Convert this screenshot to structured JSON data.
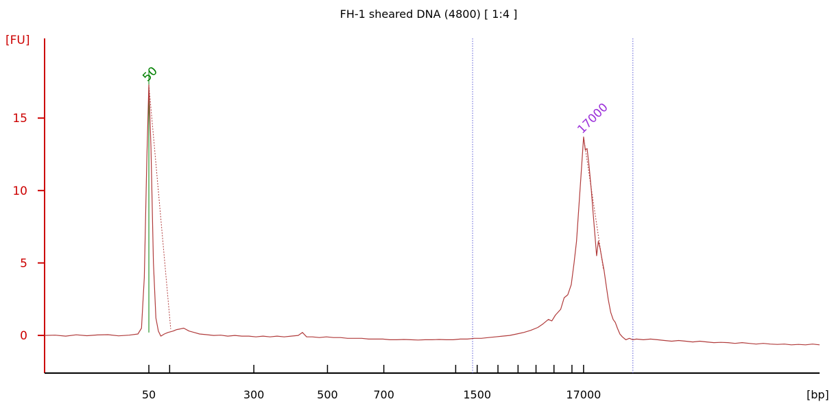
{
  "chart_data": {
    "type": "line",
    "title": "FH-1 sheared DNA (4800)  [ 1:4 ]",
    "ylabel": "[FU]",
    "xlabel": "[bp]",
    "ylim": [
      -2.6,
      20.5
    ],
    "y_ticks": [
      0,
      5,
      10,
      15
    ],
    "x_axis_scale": "nonlinear (electropherogram migration)",
    "x_tick_labels": [
      {
        "bp": "50",
        "labeled": true
      },
      {
        "bp": "",
        "labeled": false
      },
      {
        "bp": "300",
        "labeled": true
      },
      {
        "bp": "500",
        "labeled": true
      },
      {
        "bp": "700",
        "labeled": true
      },
      {
        "bp": "",
        "labeled": false
      },
      {
        "bp": "1500",
        "labeled": true
      },
      {
        "bp": "",
        "labeled": false
      },
      {
        "bp": "",
        "labeled": false
      },
      {
        "bp": "",
        "labeled": false
      },
      {
        "bp": "",
        "labeled": false
      },
      {
        "bp": "",
        "labeled": false
      },
      {
        "bp": "17000",
        "labeled": true
      }
    ],
    "colors": {
      "trace": "#b03a3a",
      "y_axis": "#cc0000",
      "region_lines": "#5a5ad6",
      "marker_peak_label": "#008000",
      "sample_peak_label": "#9b30d9"
    },
    "peak_labels": [
      {
        "text": "50",
        "y": 17.3,
        "color": "#008000"
      },
      {
        "text": "17000",
        "y": 13.7,
        "color": "#9b30d9"
      }
    ],
    "series": [
      {
        "values_note": "fluorescence trace sampled along migration axis",
        "points": [
          [
            0,
            0.0
          ],
          [
            3,
            0.02
          ],
          [
            6,
            -0.05
          ],
          [
            9,
            0.04
          ],
          [
            12,
            -0.02
          ],
          [
            15,
            0.03
          ],
          [
            18,
            0.05
          ],
          [
            21,
            -0.03
          ],
          [
            24,
            0.02
          ],
          [
            26.5,
            0.1
          ],
          [
            27.5,
            0.5
          ],
          [
            28.3,
            4.0
          ],
          [
            29.0,
            12.0
          ],
          [
            29.6,
            17.3
          ],
          [
            30.2,
            13.0
          ],
          [
            30.9,
            5.0
          ],
          [
            31.6,
            1.2
          ],
          [
            32.3,
            0.3
          ],
          [
            33.0,
            -0.05
          ],
          [
            34,
            0.1
          ],
          [
            35,
            0.2
          ],
          [
            36.5,
            0.3
          ],
          [
            37.5,
            0.4
          ],
          [
            38.5,
            0.45
          ],
          [
            39.5,
            0.5
          ],
          [
            41,
            0.3
          ],
          [
            42.5,
            0.2
          ],
          [
            44,
            0.1
          ],
          [
            46,
            0.05
          ],
          [
            48,
            0.0
          ],
          [
            50,
            0.02
          ],
          [
            52,
            -0.05
          ],
          [
            54,
            0.0
          ],
          [
            56,
            -0.05
          ],
          [
            58,
            -0.05
          ],
          [
            60,
            -0.1
          ],
          [
            62,
            -0.05
          ],
          [
            64,
            -0.1
          ],
          [
            66,
            -0.05
          ],
          [
            68,
            -0.1
          ],
          [
            70,
            -0.05
          ],
          [
            72,
            0.0
          ],
          [
            73.2,
            0.2
          ],
          [
            74.4,
            -0.1
          ],
          [
            76,
            -0.1
          ],
          [
            78,
            -0.15
          ],
          [
            80,
            -0.1
          ],
          [
            82,
            -0.15
          ],
          [
            84,
            -0.15
          ],
          [
            86,
            -0.2
          ],
          [
            88,
            -0.2
          ],
          [
            90,
            -0.2
          ],
          [
            92,
            -0.25
          ],
          [
            94,
            -0.25
          ],
          [
            96,
            -0.25
          ],
          [
            98,
            -0.3
          ],
          [
            100,
            -0.3
          ],
          [
            102,
            -0.28
          ],
          [
            104,
            -0.3
          ],
          [
            106,
            -0.32
          ],
          [
            108,
            -0.3
          ],
          [
            110,
            -0.3
          ],
          [
            112,
            -0.28
          ],
          [
            114,
            -0.3
          ],
          [
            116,
            -0.3
          ],
          [
            118,
            -0.25
          ],
          [
            120,
            -0.25
          ],
          [
            122,
            -0.2
          ],
          [
            124,
            -0.2
          ],
          [
            126,
            -0.15
          ],
          [
            128,
            -0.1
          ],
          [
            130,
            -0.05
          ],
          [
            132,
            0.0
          ],
          [
            134,
            0.1
          ],
          [
            136,
            0.2
          ],
          [
            138,
            0.35
          ],
          [
            140,
            0.55
          ],
          [
            141.5,
            0.8
          ],
          [
            143,
            1.1
          ],
          [
            144,
            1.0
          ],
          [
            145,
            1.4
          ],
          [
            146.5,
            1.8
          ],
          [
            147.5,
            2.6
          ],
          [
            148.5,
            2.8
          ],
          [
            149.5,
            3.5
          ],
          [
            150.3,
            5.0
          ],
          [
            151,
            6.5
          ],
          [
            151.7,
            9.0
          ],
          [
            152.4,
            11.5
          ],
          [
            153,
            13.7
          ],
          [
            153.5,
            12.8
          ],
          [
            154,
            12.9
          ],
          [
            154.6,
            11.6
          ],
          [
            155.2,
            10.0
          ],
          [
            155.7,
            8.5
          ],
          [
            156.2,
            7.0
          ],
          [
            156.7,
            5.5
          ],
          [
            157.2,
            6.5
          ],
          [
            157.7,
            6.0
          ],
          [
            158.2,
            5.3
          ],
          [
            158.8,
            4.5
          ],
          [
            159.4,
            3.5
          ],
          [
            160,
            2.5
          ],
          [
            160.7,
            1.6
          ],
          [
            161.4,
            1.1
          ],
          [
            162,
            0.9
          ],
          [
            162.6,
            0.5
          ],
          [
            163.3,
            0.1
          ],
          [
            164,
            -0.1
          ],
          [
            165,
            -0.3
          ],
          [
            166,
            -0.2
          ],
          [
            167,
            -0.3
          ],
          [
            168,
            -0.25
          ],
          [
            170,
            -0.3
          ],
          [
            172,
            -0.25
          ],
          [
            174,
            -0.3
          ],
          [
            176,
            -0.35
          ],
          [
            178,
            -0.4
          ],
          [
            180,
            -0.35
          ],
          [
            182,
            -0.4
          ],
          [
            184,
            -0.45
          ],
          [
            186,
            -0.4
          ],
          [
            188,
            -0.45
          ],
          [
            190,
            -0.5
          ],
          [
            192,
            -0.48
          ],
          [
            194,
            -0.5
          ],
          [
            196,
            -0.55
          ],
          [
            198,
            -0.5
          ],
          [
            200,
            -0.55
          ],
          [
            202,
            -0.6
          ],
          [
            204,
            -0.55
          ],
          [
            206,
            -0.6
          ],
          [
            208,
            -0.62
          ],
          [
            210,
            -0.6
          ],
          [
            212,
            -0.65
          ],
          [
            214,
            -0.62
          ],
          [
            216,
            -0.65
          ],
          [
            218,
            -0.6
          ],
          [
            220,
            -0.65
          ]
        ]
      }
    ]
  }
}
